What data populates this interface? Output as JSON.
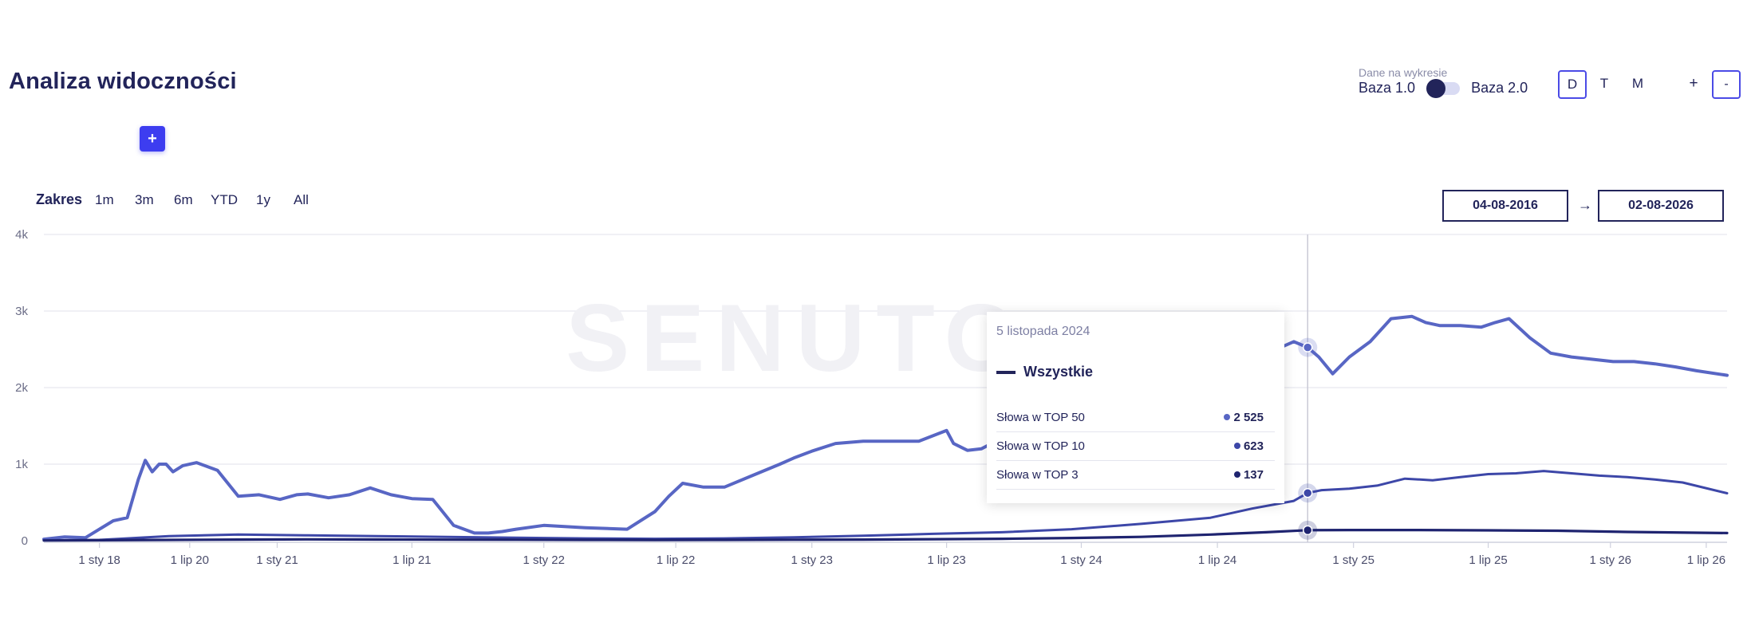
{
  "header": {
    "title": "Analiza widoczności",
    "add_label": "+",
    "data_caption": "Dane na wykresie",
    "toggle_left": "Baza 1.0",
    "toggle_right": "Baza 2.0",
    "granularity": [
      "D",
      "T",
      "M"
    ],
    "granularity_active": "D",
    "zoom_in": "+",
    "zoom_out": "-"
  },
  "range": {
    "label": "Zakres",
    "options": [
      "1m",
      "3m",
      "6m",
      "YTD",
      "1y",
      "All"
    ],
    "date_from": "04-08-2016",
    "arrow": "→",
    "date_to": "02-08-2026"
  },
  "watermark": "SENUTO",
  "colors": {
    "top50": "#5866c4",
    "top10": "#3d47a8",
    "top3": "#1f2470",
    "accent": "#3d3df0",
    "grid": "#e6e7ef"
  },
  "tooltip": {
    "date": "5 listopada 2024",
    "series": "Wszystkie",
    "rows": [
      {
        "label": "Słowa w TOP 50",
        "value": "2 525",
        "color": "#5866c4"
      },
      {
        "label": "Słowa w TOP 10",
        "value": "623",
        "color": "#3d47a8"
      },
      {
        "label": "Słowa w TOP 3",
        "value": "137",
        "color": "#1f2470"
      }
    ]
  },
  "chart_data": {
    "type": "line",
    "y_ticks": [
      "0",
      "1k",
      "2k",
      "3k",
      "4k"
    ],
    "ylim": [
      0,
      4000
    ],
    "x_ticks": [
      {
        "label": "1 sty 18",
        "t": 2018.0
      },
      {
        "label": "1 lip 20",
        "t": 2018.65
      },
      {
        "label": "1 sty 21",
        "t": 2019.28
      },
      {
        "label": "1 lip 21",
        "t": 2020.25
      },
      {
        "label": "1 sty 22",
        "t": 2021.2
      },
      {
        "label": "1 lip 22",
        "t": 2022.15
      },
      {
        "label": "1 sty 23",
        "t": 2023.13
      },
      {
        "label": "1 lip 23",
        "t": 2024.1
      },
      {
        "label": "1 sty 24",
        "t": 2025.07
      },
      {
        "label": "1 lip 24",
        "t": 2026.05
      },
      {
        "label": "1 sty 25",
        "t": 2027.03
      },
      {
        "label": "1 lip 25",
        "t": 2028.0
      },
      {
        "label": "1 sty 26",
        "t": 2028.88
      },
      {
        "label": "1 lip 26",
        "t": 2029.57
      }
    ],
    "xlim": [
      2017.6,
      2029.72
    ],
    "cursor_t": 2026.7,
    "series": [
      {
        "name": "Słowa w TOP 50",
        "x": [
          2017.6,
          2017.75,
          2017.9,
          2018.0,
          2018.1,
          2018.2,
          2018.28,
          2018.33,
          2018.38,
          2018.43,
          2018.48,
          2018.53,
          2018.6,
          2018.7,
          2018.85,
          2019.0,
          2019.15,
          2019.3,
          2019.42,
          2019.5,
          2019.65,
          2019.8,
          2019.95,
          2020.1,
          2020.25,
          2020.4,
          2020.55,
          2020.7,
          2020.8,
          2020.9,
          2021.0,
          2021.2,
          2021.5,
          2021.8,
          2022.0,
          2022.1,
          2022.2,
          2022.35,
          2022.5,
          2022.7,
          2022.9,
          2023.0,
          2023.13,
          2023.3,
          2023.5,
          2023.7,
          2023.9,
          2024.1,
          2024.15,
          2024.25,
          2024.35,
          2024.5,
          2024.7,
          2024.9,
          2025.1,
          2025.3,
          2025.5,
          2025.7,
          2025.9,
          2026.05,
          2026.2,
          2026.35,
          2026.5,
          2026.6,
          2026.7,
          2026.78,
          2026.88,
          2027.0,
          2027.15,
          2027.3,
          2027.45,
          2027.55,
          2027.65,
          2027.8,
          2027.95,
          2028.05,
          2028.15,
          2028.3,
          2028.45,
          2028.6,
          2028.75,
          2028.9,
          2029.05,
          2029.2,
          2029.35,
          2029.5,
          2029.72
        ],
        "y": [
          20,
          50,
          40,
          150,
          260,
          300,
          800,
          1050,
          900,
          1000,
          1000,
          900,
          980,
          1020,
          920,
          580,
          600,
          540,
          600,
          610,
          560,
          600,
          690,
          600,
          550,
          540,
          200,
          100,
          100,
          120,
          150,
          200,
          170,
          150,
          380,
          580,
          750,
          700,
          700,
          850,
          1000,
          1080,
          1170,
          1270,
          1300,
          1300,
          1300,
          1440,
          1270,
          1180,
          1200,
          1340,
          1570,
          1700,
          1880,
          2000,
          2080,
          2100,
          2230,
          2320,
          2420,
          2400,
          2520,
          2600,
          2525,
          2400,
          2180,
          2400,
          2600,
          2900,
          2930,
          2850,
          2810,
          2810,
          2790,
          2850,
          2900,
          2650,
          2450,
          2400,
          2370,
          2340,
          2340,
          2310,
          2270,
          2220,
          2160
        ]
      },
      {
        "name": "Słowa w TOP 10",
        "x": [
          2017.6,
          2018.0,
          2018.5,
          2019.0,
          2019.5,
          2020.0,
          2020.5,
          2021.0,
          2021.5,
          2022.0,
          2022.5,
          2023.0,
          2023.5,
          2024.0,
          2024.5,
          2025.0,
          2025.5,
          2026.0,
          2026.3,
          2026.6,
          2026.7,
          2026.8,
          2027.0,
          2027.2,
          2027.4,
          2027.6,
          2027.8,
          2028.0,
          2028.2,
          2028.4,
          2028.6,
          2028.8,
          2029.0,
          2029.2,
          2029.4,
          2029.72
        ],
        "y": [
          5,
          10,
          60,
          80,
          70,
          60,
          50,
          40,
          30,
          25,
          30,
          45,
          65,
          90,
          110,
          150,
          220,
          300,
          420,
          520,
          623,
          660,
          680,
          720,
          810,
          790,
          830,
          870,
          880,
          910,
          880,
          850,
          830,
          800,
          760,
          620
        ]
      },
      {
        "name": "Słowa w TOP 3",
        "x": [
          2017.6,
          2018.5,
          2019.0,
          2019.5,
          2020.0,
          2020.5,
          2021.0,
          2021.5,
          2022.0,
          2022.5,
          2023.0,
          2023.5,
          2024.0,
          2024.5,
          2025.0,
          2025.5,
          2026.0,
          2026.4,
          2026.7,
          2027.0,
          2027.5,
          2028.0,
          2028.5,
          2029.0,
          2029.72
        ],
        "y": [
          3,
          10,
          15,
          18,
          16,
          14,
          12,
          10,
          9,
          10,
          12,
          15,
          20,
          25,
          35,
          50,
          80,
          110,
          137,
          140,
          140,
          135,
          130,
          115,
          100
        ]
      }
    ],
    "grid": true,
    "legend": "tooltip"
  }
}
